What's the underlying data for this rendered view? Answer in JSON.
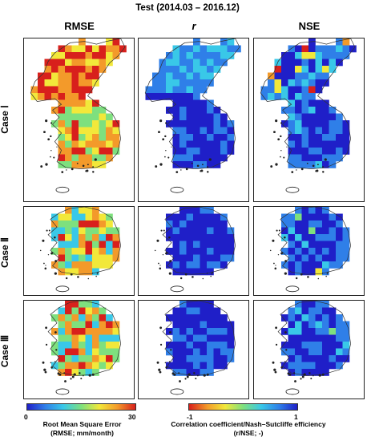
{
  "title": "Test (2014.03 – 2016.12)",
  "columns": [
    "RMSE",
    "r",
    "NSE"
  ],
  "rows": [
    "Case Ⅰ",
    "Case Ⅱ",
    "Case Ⅲ"
  ],
  "colorbars": {
    "rmse": {
      "min_label": "0",
      "max_label": "30",
      "title_line1": "Root Mean Square Error",
      "title_line2": "(RMSE; mm/month)",
      "colors": [
        "#1f1fc8",
        "#2f7fe8",
        "#39c8e8",
        "#7ee07e",
        "#f2e83a",
        "#f39a2a",
        "#d8201c"
      ]
    },
    "corr": {
      "min_label": "-1",
      "max_label": "1",
      "title_line1": "Correlation coefficient/Nash–Sutcliffe efficiency",
      "title_line2": "(r/NSE; -)",
      "colors": [
        "#d8201c",
        "#f39a2a",
        "#f2e83a",
        "#7ee07e",
        "#39c8e8",
        "#2f7fe8",
        "#1f1fc8"
      ]
    }
  }
}
